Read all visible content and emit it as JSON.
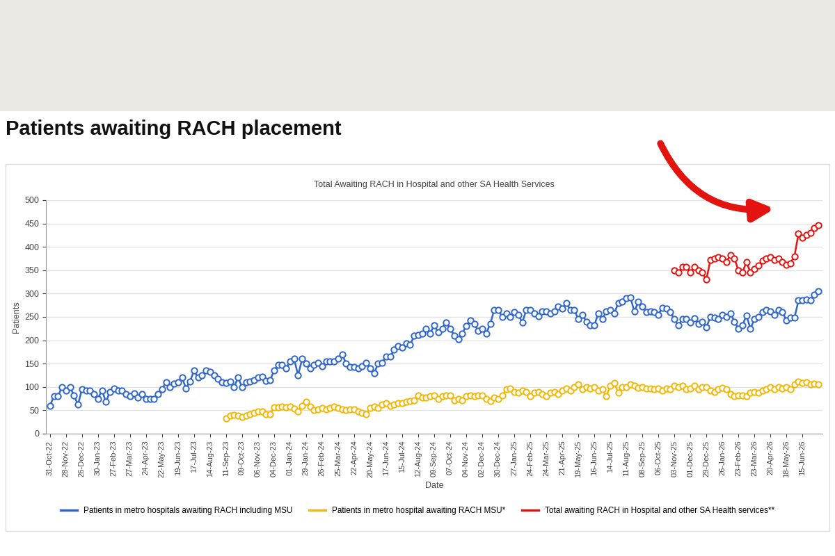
{
  "chart_data": {
    "type": "line",
    "title": "Patients awaiting RACH placement",
    "subtitle": "Total Awaiting RACH in Hospital and other SA Health Services",
    "x_label": "Date",
    "y_label": "Patients",
    "ylim": [
      0,
      500
    ],
    "yticks": [
      0,
      50,
      100,
      150,
      200,
      250,
      300,
      350,
      400,
      450,
      500
    ],
    "grid": true,
    "legend": "lower center",
    "marker": "o",
    "categories": [
      "31-Oct-22",
      null,
      null,
      null,
      "28-Nov-22",
      null,
      null,
      null,
      "26-Dec-22",
      null,
      null,
      null,
      "30-Jan-23",
      null,
      null,
      null,
      "27-Feb-23",
      null,
      null,
      null,
      "27-Mar-23",
      null,
      null,
      null,
      "24-Apr-23",
      null,
      null,
      null,
      "22-May-23",
      null,
      null,
      null,
      "19-Jun-23",
      null,
      null,
      null,
      "17-Jul-23",
      null,
      null,
      null,
      "14-Aug-23",
      null,
      null,
      null,
      "11-Sep-23",
      null,
      null,
      null,
      "09-Oct-23",
      null,
      null,
      null,
      "06-Nov-23",
      null,
      null,
      null,
      "04-Dec-23",
      null,
      null,
      null,
      "01-Jan-24",
      null,
      null,
      null,
      "29-Jan-24",
      null,
      null,
      null,
      "26-Feb-24",
      null,
      null,
      null,
      "25-Mar-24",
      null,
      null,
      null,
      "22-Apr-24",
      null,
      null,
      null,
      "20-May-24",
      null,
      null,
      null,
      "17-Jun-24",
      null,
      null,
      null,
      "15-Jul-24",
      null,
      null,
      null,
      "12-Aug-24",
      null,
      null,
      null,
      "09-Sep-24",
      null,
      null,
      null,
      "07-Oct-24",
      null,
      null,
      null,
      "04-Nov-24",
      null,
      null,
      null,
      "02-Dec-24",
      null,
      null,
      null,
      "30-Dec-24",
      null,
      null,
      null,
      "27-Jan-25",
      null,
      null,
      null,
      "24-Feb-25",
      null,
      null,
      null,
      "24-Mar-25",
      null,
      null,
      null,
      "21-Apr-25",
      null,
      null,
      null,
      "19-May-25",
      null,
      null,
      null,
      "16-Jun-25",
      null,
      null,
      null,
      "14-Jul-25",
      null,
      null,
      null,
      "11-Aug-25",
      null,
      null,
      null,
      "08-Sep-25",
      null,
      null,
      null,
      "06-Oct-25",
      null,
      null,
      null,
      "03-Nov-25",
      null,
      null,
      null,
      "01-Dec-25",
      null,
      null,
      null,
      "29-Dec-25",
      null,
      null,
      null,
      "26-Jan-26",
      null,
      null,
      null,
      "23-Feb-26",
      null,
      null,
      null,
      "23-Mar-26",
      null,
      null,
      null,
      "20-Apr-26",
      null,
      null,
      null,
      "18-May-26",
      null,
      null,
      null,
      "15-Jun-26",
      null,
      null,
      null,
      null
    ],
    "series": [
      {
        "name": "Patients in metro hospitals awaiting RACH including MSU",
        "color": "#2f66c8",
        "values": [
          60,
          80,
          80,
          100,
          92,
          100,
          82,
          62,
          95,
          93,
          93,
          85,
          75,
          93,
          68,
          90,
          97,
          92,
          93,
          85,
          80,
          87,
          78,
          85,
          75,
          75,
          75,
          85,
          95,
          110,
          100,
          107,
          110,
          120,
          97,
          112,
          135,
          120,
          125,
          135,
          133,
          125,
          118,
          110,
          108,
          112,
          100,
          120,
          100,
          110,
          112,
          115,
          120,
          122,
          113,
          115,
          135,
          147,
          148,
          140,
          155,
          160,
          125,
          160,
          150,
          140,
          148,
          152,
          145,
          155,
          155,
          155,
          160,
          170,
          150,
          143,
          143,
          140,
          145,
          152,
          140,
          130,
          150,
          152,
          165,
          165,
          180,
          187,
          185,
          193,
          190,
          210,
          212,
          215,
          225,
          215,
          232,
          218,
          225,
          238,
          225,
          210,
          202,
          215,
          230,
          242,
          235,
          220,
          225,
          215,
          235,
          265,
          265,
          250,
          258,
          250,
          260,
          255,
          238,
          265,
          265,
          257,
          252,
          262,
          262,
          258,
          262,
          272,
          268,
          280,
          265,
          265,
          245,
          255,
          240,
          232,
          232,
          258,
          245,
          262,
          265,
          258,
          280,
          282,
          290,
          292,
          262,
          282,
          272,
          260,
          262,
          260,
          255,
          270,
          268,
          260,
          245,
          232,
          245,
          245,
          238,
          247,
          235,
          240,
          228,
          250,
          248,
          245,
          255,
          250,
          258,
          240,
          225,
          232,
          253,
          225,
          245,
          250,
          260,
          265,
          262,
          255,
          265,
          260,
          243,
          248,
          248,
          285,
          285,
          287,
          285,
          297,
          305
        ]
      },
      {
        "name": "Patients in metro hospital awaiting RACH MSU*",
        "color": "#f2b705",
        "values": [
          null,
          null,
          null,
          null,
          null,
          null,
          null,
          null,
          null,
          null,
          null,
          null,
          null,
          null,
          null,
          null,
          null,
          null,
          null,
          null,
          null,
          null,
          null,
          null,
          null,
          null,
          null,
          null,
          null,
          null,
          null,
          null,
          null,
          null,
          null,
          null,
          null,
          null,
          null,
          null,
          null,
          null,
          null,
          null,
          32,
          38,
          40,
          38,
          35,
          38,
          42,
          45,
          47,
          47,
          42,
          42,
          57,
          57,
          58,
          57,
          58,
          53,
          48,
          60,
          68,
          58,
          50,
          52,
          55,
          52,
          55,
          58,
          55,
          52,
          50,
          52,
          52,
          47,
          45,
          42,
          55,
          58,
          55,
          62,
          65,
          60,
          62,
          65,
          65,
          68,
          70,
          72,
          82,
          78,
          78,
          80,
          82,
          75,
          80,
          82,
          82,
          72,
          75,
          72,
          80,
          82,
          80,
          82,
          82,
          75,
          70,
          78,
          75,
          82,
          95,
          97,
          90,
          88,
          92,
          90,
          80,
          88,
          90,
          85,
          80,
          88,
          90,
          85,
          92,
          97,
          92,
          100,
          105,
          95,
          100,
          97,
          100,
          92,
          95,
          80,
          103,
          108,
          88,
          100,
          100,
          105,
          102,
          98,
          100,
          97,
          97,
          95,
          97,
          92,
          97,
          95,
          102,
          100,
          103,
          95,
          97,
          102,
          95,
          100,
          100,
          92,
          90,
          95,
          98,
          95,
          85,
          80,
          82,
          82,
          80,
          88,
          90,
          88,
          92,
          95,
          100,
          95,
          100,
          97,
          100,
          95,
          105,
          112,
          108,
          110,
          105,
          107,
          105
        ]
      },
      {
        "name": "Total awaiting RACH in Hospital and other SA Health services**",
        "color": "#e3140f",
        "values": [
          null,
          null,
          null,
          null,
          null,
          null,
          null,
          null,
          null,
          null,
          null,
          null,
          null,
          null,
          null,
          null,
          null,
          null,
          null,
          null,
          null,
          null,
          null,
          null,
          null,
          null,
          null,
          null,
          null,
          null,
          null,
          null,
          null,
          null,
          null,
          null,
          null,
          null,
          null,
          null,
          null,
          null,
          null,
          null,
          null,
          null,
          null,
          null,
          null,
          null,
          null,
          null,
          null,
          null,
          null,
          null,
          null,
          null,
          null,
          null,
          null,
          null,
          null,
          null,
          null,
          null,
          null,
          null,
          null,
          null,
          null,
          null,
          null,
          null,
          null,
          null,
          null,
          null,
          null,
          null,
          null,
          null,
          null,
          null,
          null,
          null,
          null,
          null,
          null,
          null,
          null,
          null,
          null,
          null,
          null,
          null,
          null,
          null,
          null,
          null,
          null,
          null,
          null,
          null,
          null,
          null,
          null,
          null,
          null,
          null,
          null,
          null,
          null,
          null,
          null,
          null,
          null,
          null,
          null,
          null,
          null,
          null,
          null,
          null,
          null,
          null,
          null,
          null,
          null,
          null,
          null,
          null,
          null,
          null,
          null,
          null,
          null,
          null,
          null,
          null,
          null,
          null,
          null,
          null,
          null,
          null,
          null,
          null,
          null,
          null,
          null,
          null,
          null,
          null,
          null,
          null,
          350,
          345,
          357,
          357,
          345,
          357,
          350,
          345,
          330,
          372,
          375,
          378,
          375,
          368,
          383,
          375,
          350,
          345,
          368,
          345,
          352,
          360,
          370,
          375,
          378,
          372,
          375,
          368,
          362,
          365,
          380,
          428,
          420,
          425,
          430,
          440,
          447
        ]
      }
    ]
  }
}
